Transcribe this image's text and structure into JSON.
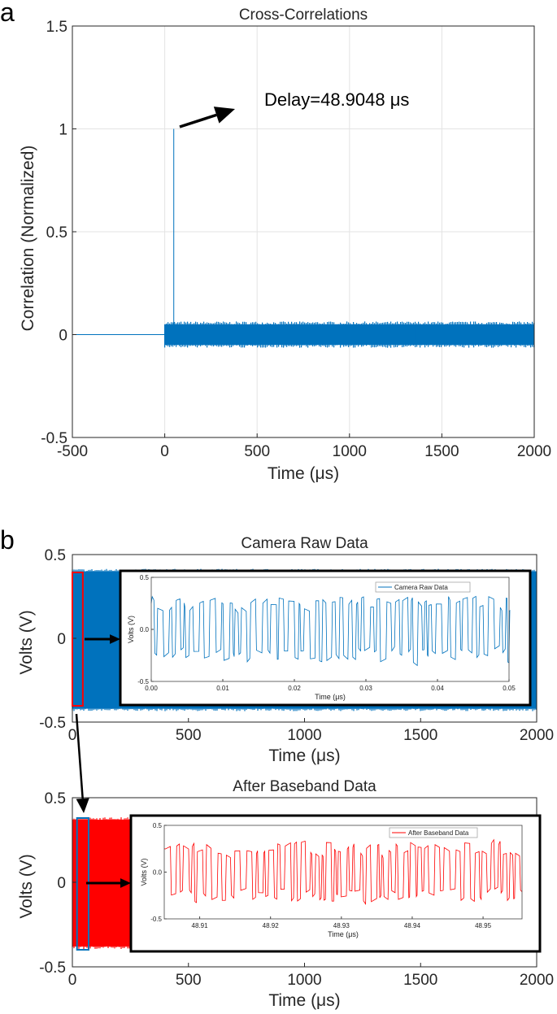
{
  "panels": {
    "a": {
      "letter": "a"
    },
    "b": {
      "letter": "b"
    }
  },
  "colors": {
    "blue": "#0072BD",
    "red": "#FF0000",
    "grid": "#e3e3e3",
    "frame": "#000000"
  },
  "chart_data": [
    {
      "id": "cross-correlation",
      "type": "line",
      "title": "Cross-Correlations",
      "xlabel": "Time (μs)",
      "ylabel": "Correlation (Normalized)",
      "xlim": [
        -500,
        2000
      ],
      "ylim": [
        -0.5,
        1.5
      ],
      "xticks": [
        "-500",
        "0",
        "500",
        "1000",
        "1500",
        "2000"
      ],
      "yticks": [
        "-0.5",
        "0",
        "0.5",
        "1",
        "1.5"
      ],
      "grid": true,
      "series": [
        {
          "color": "#0072BD",
          "segments": [
            {
              "x_range": [
                -500,
                0
              ],
              "value": 0
            },
            {
              "x_range": [
                0,
                2000
              ],
              "band": [
                -0.05,
                0.05
              ]
            }
          ],
          "peak": {
            "x": 48.9048,
            "y": 1
          }
        }
      ],
      "annotation": {
        "text": "Delay=48.9048 μs",
        "position": "above the peak, arrow pointing up-right"
      }
    },
    {
      "id": "camera-raw",
      "type": "line",
      "title": "Camera Raw Data",
      "xlabel": "Time (μs)",
      "ylabel": "Volts (V)",
      "xlim": [
        0,
        2000
      ],
      "ylim": [
        -0.5,
        0.5
      ],
      "xticks": [
        "0",
        "500",
        "1000",
        "1500",
        "2000"
      ],
      "yticks": [
        "-0.5",
        "0",
        "0.5"
      ],
      "series": [
        {
          "color": "#0072BD",
          "band": [
            -0.42,
            0.4
          ]
        }
      ],
      "highlight": {
        "x_range": [
          0,
          45
        ],
        "color": "#FF0000"
      },
      "inset": {
        "xlabel": "Time (μs)",
        "ylabel": "Volts (V)",
        "xlim": [
          0,
          0.05
        ],
        "ylim": [
          -0.5,
          0.5
        ],
        "xticks": [
          "0.00",
          "0.01",
          "0.02",
          "0.03",
          "0.04",
          "0.05"
        ],
        "yticks": [
          "-0.5",
          "0.0",
          "0.5"
        ],
        "legend": "Camera Raw Data",
        "legend_position": "top-right",
        "color": "#0072BD",
        "levels": [
          -0.25,
          0.25
        ]
      }
    },
    {
      "id": "after-baseband",
      "type": "line",
      "title": "After Baseband Data",
      "xlabel": "Time (μs)",
      "ylabel": "Volts (V)",
      "xlim": [
        0,
        2000
      ],
      "ylim": [
        -0.5,
        0.5
      ],
      "xticks": [
        "0",
        "500",
        "1000",
        "1500",
        "2000"
      ],
      "yticks": [
        "-0.5",
        "0",
        "0.5"
      ],
      "series": [
        {
          "color": "#FF0000",
          "band": [
            -0.38,
            0.37
          ]
        }
      ],
      "highlight": {
        "x_range": [
          20,
          70
        ],
        "color": "#0072BD"
      },
      "inset": {
        "xlabel": "Time (μs)",
        "ylabel": "Volts (V)",
        "xlim": [
          48.905,
          48.9555
        ],
        "ylim": [
          -0.5,
          0.5
        ],
        "xticks": [
          "48.91",
          "48.92",
          "48.93",
          "48.94",
          "48.95"
        ],
        "yticks": [
          "-0.5",
          "0.0",
          "0.5"
        ],
        "legend": "After Baseband Data",
        "legend_position": "top-right",
        "color": "#FF0000",
        "levels": [
          -0.25,
          0.25
        ]
      }
    }
  ]
}
